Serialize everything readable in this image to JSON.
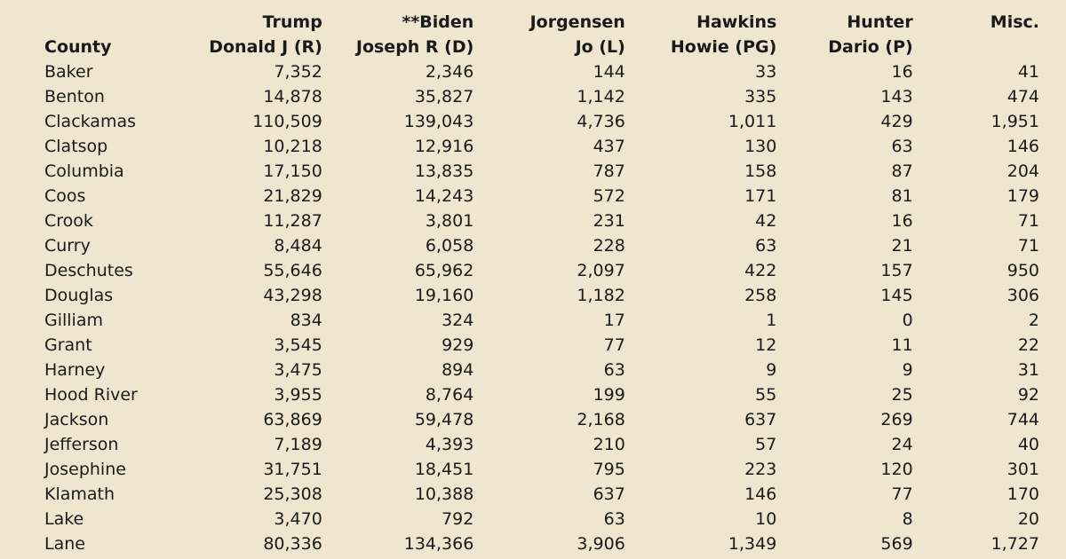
{
  "table": {
    "columns": [
      {
        "key": "county",
        "line1": "",
        "line2": "County"
      },
      {
        "key": "trump",
        "line1": "Trump",
        "line2": "Donald J (R)"
      },
      {
        "key": "biden",
        "line1": "**Biden",
        "line2": "Joseph R (D)"
      },
      {
        "key": "jorgensen",
        "line1": "Jorgensen",
        "line2": "Jo (L)"
      },
      {
        "key": "hawkins",
        "line1": "Hawkins",
        "line2": "Howie (PG)"
      },
      {
        "key": "hunter",
        "line1": "Hunter",
        "line2": "Dario (P)"
      },
      {
        "key": "misc",
        "line1": "Misc.",
        "line2": ""
      }
    ],
    "rows": [
      [
        "Baker",
        "7,352",
        "2,346",
        "144",
        "33",
        "16",
        "41"
      ],
      [
        "Benton",
        "14,878",
        "35,827",
        "1,142",
        "335",
        "143",
        "474"
      ],
      [
        "Clackamas",
        "110,509",
        "139,043",
        "4,736",
        "1,011",
        "429",
        "1,951"
      ],
      [
        "Clatsop",
        "10,218",
        "12,916",
        "437",
        "130",
        "63",
        "146"
      ],
      [
        "Columbia",
        "17,150",
        "13,835",
        "787",
        "158",
        "87",
        "204"
      ],
      [
        "Coos",
        "21,829",
        "14,243",
        "572",
        "171",
        "81",
        "179"
      ],
      [
        "Crook",
        "11,287",
        "3,801",
        "231",
        "42",
        "16",
        "71"
      ],
      [
        "Curry",
        "8,484",
        "6,058",
        "228",
        "63",
        "21",
        "71"
      ],
      [
        "Deschutes",
        "55,646",
        "65,962",
        "2,097",
        "422",
        "157",
        "950"
      ],
      [
        "Douglas",
        "43,298",
        "19,160",
        "1,182",
        "258",
        "145",
        "306"
      ],
      [
        "Gilliam",
        "834",
        "324",
        "17",
        "1",
        "0",
        "2"
      ],
      [
        "Grant",
        "3,545",
        "929",
        "77",
        "12",
        "11",
        "22"
      ],
      [
        "Harney",
        "3,475",
        "894",
        "63",
        "9",
        "9",
        "31"
      ],
      [
        "Hood River",
        "3,955",
        "8,764",
        "199",
        "55",
        "25",
        "92"
      ],
      [
        "Jackson",
        "63,869",
        "59,478",
        "2,168",
        "637",
        "269",
        "744"
      ],
      [
        "Jefferson",
        "7,189",
        "4,393",
        "210",
        "57",
        "24",
        "40"
      ],
      [
        "Josephine",
        "31,751",
        "18,451",
        "795",
        "223",
        "120",
        "301"
      ],
      [
        "Klamath",
        "25,308",
        "10,388",
        "637",
        "146",
        "77",
        "170"
      ],
      [
        "Lake",
        "3,470",
        "792",
        "63",
        "10",
        "8",
        "20"
      ],
      [
        "Lane",
        "80,336",
        "134,366",
        "3,906",
        "1,349",
        "569",
        "1,727"
      ]
    ]
  }
}
